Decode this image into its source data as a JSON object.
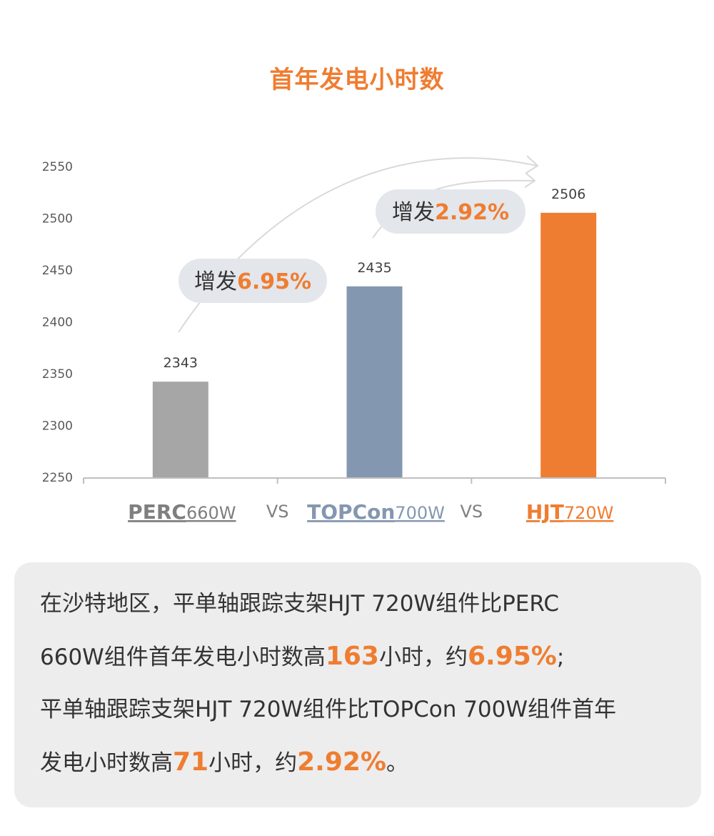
{
  "chart_data": {
    "type": "bar",
    "title": "首年发电小时数",
    "categories": [
      "PERC660W",
      "TOPCon700W",
      "HJT720W"
    ],
    "category_parts": [
      {
        "main": "PERC",
        "sub": "660W",
        "color": "#7F7F7F"
      },
      {
        "main": "TOPCon",
        "sub": "700W",
        "color": "#8497B0"
      },
      {
        "main": "HJT",
        "sub": "720W",
        "color": "#EF7D31"
      }
    ],
    "separator": "VS",
    "values": [
      2343,
      2435,
      2506
    ],
    "data_labels": [
      "2343",
      "2435",
      "2506"
    ],
    "bar_colors": [
      "#A6A6A6",
      "#8497B0",
      "#EF7D31"
    ],
    "yticks": [
      "2250",
      "2300",
      "2350",
      "2400",
      "2450",
      "2500",
      "2550"
    ],
    "ylim": [
      2250,
      2550
    ],
    "grid": false,
    "annotations": [
      {
        "prefix": "增发",
        "value": "6.95%"
      },
      {
        "prefix": "增发",
        "value": "2.92%"
      }
    ]
  },
  "note": {
    "lines": [
      [
        {
          "t": "在沙特地区，平单轴跟踪支架HJT 720W组件比PERC",
          "hl": false
        }
      ],
      [
        {
          "t": "660W组件首年发电小时数高",
          "hl": false
        },
        {
          "t": "163",
          "hl": true
        },
        {
          "t": "小时，约",
          "hl": false
        },
        {
          "t": "6.95%",
          "hl": true
        },
        {
          "t": ";",
          "hl": false
        }
      ],
      [
        {
          "t": "平单轴跟踪支架HJT 720W组件比TOPCon 700W组件首年",
          "hl": false
        }
      ],
      [
        {
          "t": "发电小时数高",
          "hl": false
        },
        {
          "t": "71",
          "hl": true
        },
        {
          "t": "小时，约",
          "hl": false
        },
        {
          "t": "2.92%",
          "hl": true
        },
        {
          "t": "。",
          "hl": false
        }
      ]
    ]
  }
}
